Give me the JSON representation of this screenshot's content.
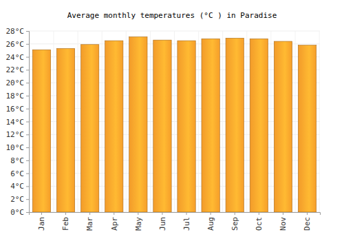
{
  "chart_data": {
    "type": "bar",
    "title": "Average monthly temperatures (°C ) in Paradise",
    "categories": [
      "Jan",
      "Feb",
      "Mar",
      "Apr",
      "May",
      "Jun",
      "Jul",
      "Aug",
      "Sep",
      "Oct",
      "Nov",
      "Dec"
    ],
    "values": [
      25.1,
      25.3,
      25.9,
      26.5,
      27.1,
      26.6,
      26.5,
      26.8,
      26.9,
      26.8,
      26.4,
      25.8
    ],
    "color": "#ffa42c",
    "ylim": [
      0,
      28
    ],
    "yticks": [
      {
        "value": 0,
        "label": "0°C"
      },
      {
        "value": 2,
        "label": "2°C"
      },
      {
        "value": 4,
        "label": "4°C"
      },
      {
        "value": 6,
        "label": "6°C"
      },
      {
        "value": 8,
        "label": "8°C"
      },
      {
        "value": 10,
        "label": "10°C"
      },
      {
        "value": 12,
        "label": "12°C"
      },
      {
        "value": 14,
        "label": "14°C"
      },
      {
        "value": 16,
        "label": "16°C"
      },
      {
        "value": 18,
        "label": "18°C"
      },
      {
        "value": 20,
        "label": "20°C"
      },
      {
        "value": 22,
        "label": "22°C"
      },
      {
        "value": 24,
        "label": "24°C"
      },
      {
        "value": 26,
        "label": "26°C"
      },
      {
        "value": 28,
        "label": "28°C"
      }
    ],
    "grid": true
  }
}
